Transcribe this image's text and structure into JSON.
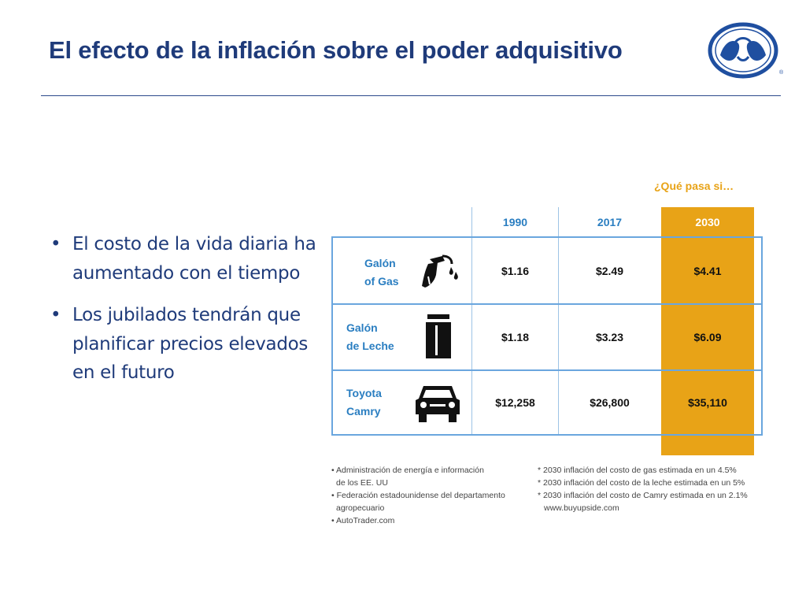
{
  "title": "El efecto de la inflación sobre el poder adquisitivo",
  "bullets": [
    "El costo de la vida diaria ha aumentado con el tiempo",
    "Los jubilados tendrán que planificar precios elevados en el futuro"
  ],
  "whatif_label": "¿Qué pasa si…",
  "table": {
    "columns": [
      "1990",
      "2017",
      "2030"
    ],
    "rows": [
      {
        "label_line1": "Galón",
        "label_line2": "of Gas",
        "icon": "gas-pump-icon",
        "values": [
          "$1.16",
          "$2.49",
          "$4.41"
        ]
      },
      {
        "label_line1": "Galón",
        "label_line2": "de Leche",
        "icon": "milk-carton-icon",
        "values": [
          "$1.18",
          "$3.23",
          "$6.09"
        ]
      },
      {
        "label_line1": "Toyota",
        "label_line2": "Camry",
        "icon": "car-icon",
        "values": [
          "$12,258",
          "$26,800",
          "$35,110"
        ]
      }
    ]
  },
  "sources": [
    "• Administración de energía e información",
    "   de los EE. UU",
    "• Federación estadounidense del departamento",
    "   agropecuario",
    "• AutoTrader.com"
  ],
  "footnotes": [
    "* 2030 inflación del costo de gas estimada en un 4.5%",
    "* 2030 inflación del costo de la leche estimada en un 5%",
    "* 2030 inflación del costo de Camry estimada en un 2.1%",
    "   www.buyupside.com"
  ],
  "colors": {
    "title": "#1f3b7a",
    "accent_gold": "#e8a317",
    "table_blue": "#2a7ec1",
    "border_blue": "#6aa6de"
  },
  "logo": "hands-logo-icon"
}
